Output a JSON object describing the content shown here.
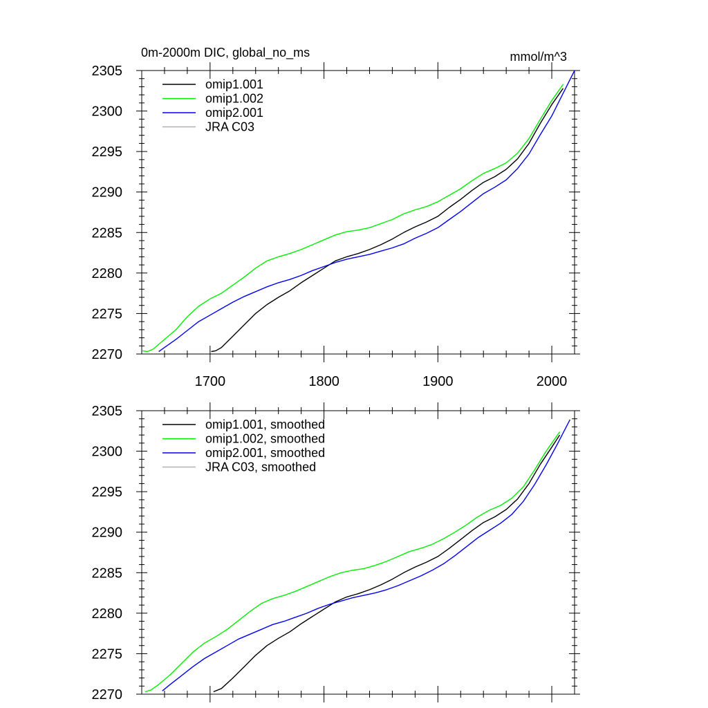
{
  "figure": {
    "title_left": "0m-2000m DIC, global_no_ms",
    "title_right": "mmol/m^3"
  },
  "chart_data": [
    {
      "type": "line",
      "xlim": [
        1640,
        2020
      ],
      "ylim": [
        2270,
        2305
      ],
      "x_ticks": [
        1700,
        1800,
        1900,
        2000
      ],
      "y_ticks": [
        2270,
        2275,
        2280,
        2285,
        2290,
        2295,
        2300,
        2305
      ],
      "x_tick_labels_shown": true,
      "grid": false,
      "legend_position": "top-left",
      "series": [
        {
          "name": "omip1.001",
          "color": "#000000",
          "points": [
            [
              1701,
              2270.3
            ],
            [
              1705,
              2270.4
            ],
            [
              1710,
              2270.8
            ],
            [
              1720,
              2272.2
            ],
            [
              1730,
              2273.6
            ],
            [
              1740,
              2275.0
            ],
            [
              1750,
              2276.1
            ],
            [
              1760,
              2277.0
            ],
            [
              1770,
              2277.8
            ],
            [
              1780,
              2278.8
            ],
            [
              1790,
              2279.7
            ],
            [
              1800,
              2280.6
            ],
            [
              1810,
              2281.5
            ],
            [
              1820,
              2282.0
            ],
            [
              1830,
              2282.4
            ],
            [
              1840,
              2282.9
            ],
            [
              1850,
              2283.5
            ],
            [
              1860,
              2284.2
            ],
            [
              1870,
              2285.0
            ],
            [
              1880,
              2285.7
            ],
            [
              1890,
              2286.3
            ],
            [
              1900,
              2287.0
            ],
            [
              1910,
              2288.1
            ],
            [
              1920,
              2289.1
            ],
            [
              1930,
              2290.2
            ],
            [
              1940,
              2291.2
            ],
            [
              1950,
              2291.9
            ],
            [
              1960,
              2292.8
            ],
            [
              1970,
              2294.1
            ],
            [
              1980,
              2296.0
            ],
            [
              1990,
              2298.5
            ],
            [
              2000,
              2300.8
            ],
            [
              2010,
              2302.8
            ]
          ]
        },
        {
          "name": "omip1.002",
          "color": "#00ee00",
          "points": [
            [
              1640,
              2270.4
            ],
            [
              1645,
              2270.3
            ],
            [
              1650,
              2270.6
            ],
            [
              1660,
              2271.8
            ],
            [
              1670,
              2273.0
            ],
            [
              1680,
              2274.6
            ],
            [
              1690,
              2275.9
            ],
            [
              1700,
              2276.8
            ],
            [
              1710,
              2277.5
            ],
            [
              1720,
              2278.5
            ],
            [
              1730,
              2279.5
            ],
            [
              1740,
              2280.6
            ],
            [
              1750,
              2281.5
            ],
            [
              1760,
              2282.0
            ],
            [
              1770,
              2282.4
            ],
            [
              1780,
              2282.9
            ],
            [
              1790,
              2283.5
            ],
            [
              1800,
              2284.1
            ],
            [
              1810,
              2284.7
            ],
            [
              1820,
              2285.1
            ],
            [
              1830,
              2285.3
            ],
            [
              1840,
              2285.6
            ],
            [
              1850,
              2286.1
            ],
            [
              1860,
              2286.6
            ],
            [
              1870,
              2287.3
            ],
            [
              1880,
              2287.8
            ],
            [
              1890,
              2288.2
            ],
            [
              1900,
              2288.8
            ],
            [
              1910,
              2289.6
            ],
            [
              1920,
              2290.4
            ],
            [
              1930,
              2291.4
            ],
            [
              1940,
              2292.3
            ],
            [
              1950,
              2292.9
            ],
            [
              1960,
              2293.6
            ],
            [
              1970,
              2294.8
            ],
            [
              1980,
              2296.6
            ],
            [
              1990,
              2299.0
            ],
            [
              2000,
              2301.3
            ],
            [
              2010,
              2303.3
            ]
          ]
        },
        {
          "name": "omip2.001",
          "color": "#0000ee",
          "points": [
            [
              1655,
              2270.3
            ],
            [
              1660,
              2270.8
            ],
            [
              1670,
              2271.8
            ],
            [
              1680,
              2272.9
            ],
            [
              1690,
              2274.0
            ],
            [
              1700,
              2274.8
            ],
            [
              1710,
              2275.6
            ],
            [
              1720,
              2276.4
            ],
            [
              1730,
              2277.1
            ],
            [
              1740,
              2277.7
            ],
            [
              1750,
              2278.3
            ],
            [
              1760,
              2278.8
            ],
            [
              1770,
              2279.2
            ],
            [
              1780,
              2279.7
            ],
            [
              1790,
              2280.3
            ],
            [
              1800,
              2280.8
            ],
            [
              1810,
              2281.3
            ],
            [
              1820,
              2281.7
            ],
            [
              1830,
              2282.0
            ],
            [
              1840,
              2282.3
            ],
            [
              1850,
              2282.7
            ],
            [
              1860,
              2283.1
            ],
            [
              1870,
              2283.6
            ],
            [
              1880,
              2284.3
            ],
            [
              1890,
              2284.9
            ],
            [
              1900,
              2285.6
            ],
            [
              1910,
              2286.6
            ],
            [
              1920,
              2287.6
            ],
            [
              1930,
              2288.7
            ],
            [
              1940,
              2289.8
            ],
            [
              1950,
              2290.6
            ],
            [
              1960,
              2291.5
            ],
            [
              1970,
              2292.9
            ],
            [
              1980,
              2294.7
            ],
            [
              1990,
              2297.1
            ],
            [
              2000,
              2299.4
            ],
            [
              2010,
              2302.2
            ],
            [
              2020,
              2305.0
            ]
          ]
        },
        {
          "name": "JRA C03",
          "color": "#b0b0b0",
          "points": []
        }
      ]
    },
    {
      "type": "line",
      "xlim": [
        1640,
        2020
      ],
      "ylim": [
        2270,
        2305
      ],
      "x_ticks": [
        1700,
        1800,
        1900,
        2000
      ],
      "y_ticks": [
        2270,
        2275,
        2280,
        2285,
        2290,
        2295,
        2300,
        2305
      ],
      "x_tick_labels_shown": false,
      "grid": false,
      "legend_position": "top-left",
      "series": [
        {
          "name": "omip1.001, smoothed",
          "color": "#000000",
          "points": [
            [
              1703,
              2270.3
            ],
            [
              1710,
              2270.7
            ],
            [
              1720,
              2272.0
            ],
            [
              1730,
              2273.4
            ],
            [
              1740,
              2274.8
            ],
            [
              1750,
              2276.0
            ],
            [
              1760,
              2276.9
            ],
            [
              1770,
              2277.7
            ],
            [
              1780,
              2278.7
            ],
            [
              1790,
              2279.6
            ],
            [
              1800,
              2280.5
            ],
            [
              1810,
              2281.4
            ],
            [
              1820,
              2282.0
            ],
            [
              1830,
              2282.4
            ],
            [
              1840,
              2282.9
            ],
            [
              1850,
              2283.5
            ],
            [
              1860,
              2284.2
            ],
            [
              1870,
              2285.0
            ],
            [
              1880,
              2285.7
            ],
            [
              1890,
              2286.3
            ],
            [
              1900,
              2287.0
            ],
            [
              1910,
              2288.0
            ],
            [
              1920,
              2289.1
            ],
            [
              1930,
              2290.2
            ],
            [
              1940,
              2291.2
            ],
            [
              1950,
              2291.9
            ],
            [
              1960,
              2292.8
            ],
            [
              1970,
              2294.1
            ],
            [
              1980,
              2296.0
            ],
            [
              1990,
              2298.4
            ],
            [
              2000,
              2300.5
            ],
            [
              2007,
              2302.0
            ]
          ]
        },
        {
          "name": "omip1.002, smoothed",
          "color": "#00ee00",
          "points": [
            [
              1643,
              2270.3
            ],
            [
              1648,
              2270.5
            ],
            [
              1655,
              2271.2
            ],
            [
              1665,
              2272.4
            ],
            [
              1675,
              2273.8
            ],
            [
              1685,
              2275.2
            ],
            [
              1695,
              2276.3
            ],
            [
              1705,
              2277.1
            ],
            [
              1715,
              2278.0
            ],
            [
              1725,
              2279.1
            ],
            [
              1735,
              2280.2
            ],
            [
              1745,
              2281.2
            ],
            [
              1755,
              2281.8
            ],
            [
              1765,
              2282.2
            ],
            [
              1775,
              2282.7
            ],
            [
              1785,
              2283.3
            ],
            [
              1795,
              2283.9
            ],
            [
              1805,
              2284.5
            ],
            [
              1815,
              2285.0
            ],
            [
              1825,
              2285.3
            ],
            [
              1835,
              2285.5
            ],
            [
              1845,
              2285.9
            ],
            [
              1855,
              2286.4
            ],
            [
              1865,
              2287.0
            ],
            [
              1875,
              2287.6
            ],
            [
              1885,
              2288.0
            ],
            [
              1895,
              2288.5
            ],
            [
              1905,
              2289.2
            ],
            [
              1915,
              2290.0
            ],
            [
              1925,
              2290.9
            ],
            [
              1935,
              2291.9
            ],
            [
              1945,
              2292.7
            ],
            [
              1955,
              2293.3
            ],
            [
              1965,
              2294.2
            ],
            [
              1975,
              2295.6
            ],
            [
              1985,
              2297.7
            ],
            [
              1995,
              2300.0
            ],
            [
              2007,
              2302.4
            ]
          ]
        },
        {
          "name": "omip2.001, smoothed",
          "color": "#0000ee",
          "points": [
            [
              1658,
              2270.4
            ],
            [
              1665,
              2271.2
            ],
            [
              1675,
              2272.3
            ],
            [
              1685,
              2273.4
            ],
            [
              1695,
              2274.4
            ],
            [
              1705,
              2275.2
            ],
            [
              1715,
              2276.0
            ],
            [
              1725,
              2276.8
            ],
            [
              1735,
              2277.4
            ],
            [
              1745,
              2278.0
            ],
            [
              1755,
              2278.6
            ],
            [
              1765,
              2279.0
            ],
            [
              1775,
              2279.5
            ],
            [
              1785,
              2280.0
            ],
            [
              1795,
              2280.6
            ],
            [
              1805,
              2281.1
            ],
            [
              1815,
              2281.5
            ],
            [
              1825,
              2281.9
            ],
            [
              1835,
              2282.2
            ],
            [
              1845,
              2282.5
            ],
            [
              1855,
              2282.9
            ],
            [
              1865,
              2283.4
            ],
            [
              1875,
              2284.0
            ],
            [
              1885,
              2284.6
            ],
            [
              1895,
              2285.3
            ],
            [
              1905,
              2286.1
            ],
            [
              1915,
              2287.1
            ],
            [
              1925,
              2288.2
            ],
            [
              1935,
              2289.3
            ],
            [
              1945,
              2290.2
            ],
            [
              1955,
              2291.1
            ],
            [
              1965,
              2292.2
            ],
            [
              1975,
              2293.8
            ],
            [
              1985,
              2295.9
            ],
            [
              1995,
              2298.3
            ],
            [
              2005,
              2300.9
            ],
            [
              2016,
              2303.9
            ]
          ]
        },
        {
          "name": "JRA C03, smoothed",
          "color": "#b0b0b0",
          "points": []
        }
      ]
    }
  ]
}
